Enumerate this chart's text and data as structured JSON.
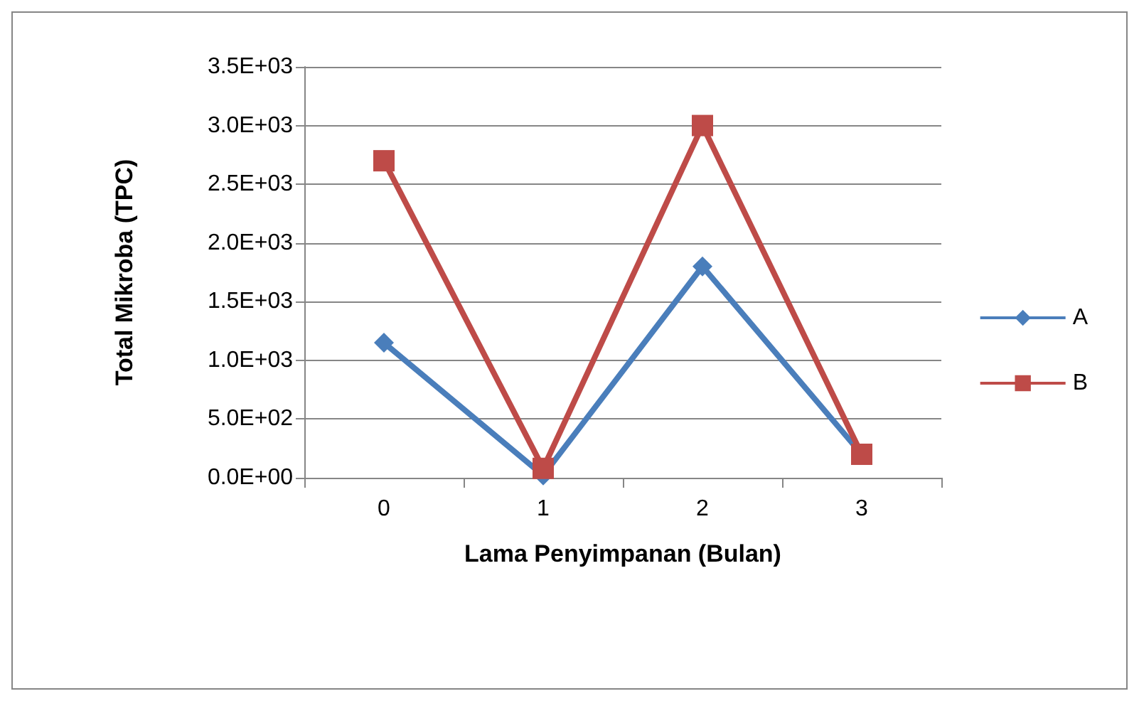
{
  "chart_data": {
    "type": "line",
    "xlabel": "Lama Penyimpanan (Bulan)",
    "ylabel": "Total Mikroba (TPC)",
    "categories": [
      "0",
      "1",
      "2",
      "3"
    ],
    "series": [
      {
        "name": "A",
        "color": "#4a7ebb",
        "marker": "diamond",
        "values": [
          1150,
          20,
          1800,
          200
        ]
      },
      {
        "name": "B",
        "color": "#be4b48",
        "marker": "square",
        "values": [
          2700,
          80,
          3000,
          200
        ]
      }
    ],
    "ylim": [
      0,
      3500
    ],
    "yticks": [
      {
        "value": 0,
        "label": "0.0E+00"
      },
      {
        "value": 500,
        "label": "5.0E+02"
      },
      {
        "value": 1000,
        "label": "1.0E+03"
      },
      {
        "value": 1500,
        "label": "1.5E+03"
      },
      {
        "value": 2000,
        "label": "2.0E+03"
      },
      {
        "value": 2500,
        "label": "2.5E+03"
      },
      {
        "value": 3000,
        "label": "3.0E+03"
      },
      {
        "value": 3500,
        "label": "3.5E+03"
      }
    ],
    "grid": "y",
    "legend": "right",
    "line_style": "solid"
  }
}
